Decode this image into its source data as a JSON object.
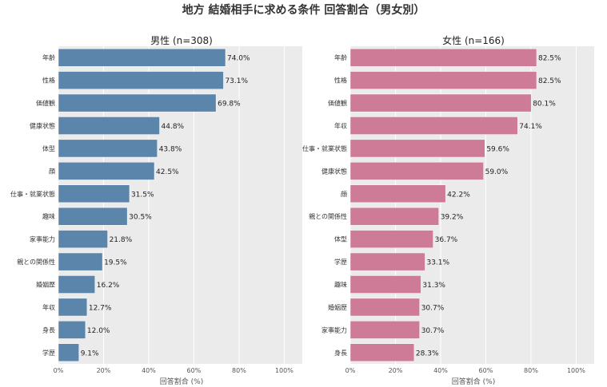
{
  "title": "地方 結婚相手に求める条件 回答割合（男女別）",
  "chart_data": [
    {
      "type": "bar",
      "orientation": "horizontal",
      "title": "男性 (n=308)",
      "xlabel": "回答割合 (%)",
      "ylabel": "",
      "xlim": [
        0,
        108
      ],
      "xticks": [
        "0%",
        "20%",
        "40%",
        "60%",
        "80%",
        "100%"
      ],
      "grid": true,
      "color": "#5b85ab",
      "categories": [
        "年齢",
        "性格",
        "価値観",
        "健康状態",
        "体型",
        "顔",
        "仕事・就業状態",
        "趣味",
        "家事能力",
        "親との関係性",
        "婚姻歴",
        "年収",
        "身長",
        "学歴"
      ],
      "values": [
        74.0,
        73.1,
        69.8,
        44.8,
        43.8,
        42.5,
        31.5,
        30.5,
        21.8,
        19.5,
        16.2,
        12.7,
        12.0,
        9.1
      ],
      "value_labels": [
        "74.0%",
        "73.1%",
        "69.8%",
        "44.8%",
        "43.8%",
        "42.5%",
        "31.5%",
        "30.5%",
        "21.8%",
        "19.5%",
        "16.2%",
        "12.7%",
        "12.0%",
        "9.1%"
      ]
    },
    {
      "type": "bar",
      "orientation": "horizontal",
      "title": "女性 (n=166)",
      "xlabel": "回答割合 (%)",
      "ylabel": "",
      "xlim": [
        0,
        108
      ],
      "xticks": [
        "0%",
        "20%",
        "40%",
        "60%",
        "80%",
        "100%"
      ],
      "grid": true,
      "color": "#cd7b97",
      "categories": [
        "年齢",
        "性格",
        "価値観",
        "年収",
        "仕事・就業状態",
        "健康状態",
        "顔",
        "親との関係性",
        "体型",
        "学歴",
        "趣味",
        "婚姻歴",
        "家事能力",
        "身長"
      ],
      "values": [
        82.5,
        82.5,
        80.1,
        74.1,
        59.6,
        59.0,
        42.2,
        39.2,
        36.7,
        33.1,
        31.3,
        30.7,
        30.7,
        28.3
      ],
      "value_labels": [
        "82.5%",
        "82.5%",
        "80.1%",
        "74.1%",
        "59.6%",
        "59.0%",
        "42.2%",
        "39.2%",
        "36.7%",
        "33.1%",
        "31.3%",
        "30.7%",
        "30.7%",
        "28.3%"
      ]
    }
  ]
}
